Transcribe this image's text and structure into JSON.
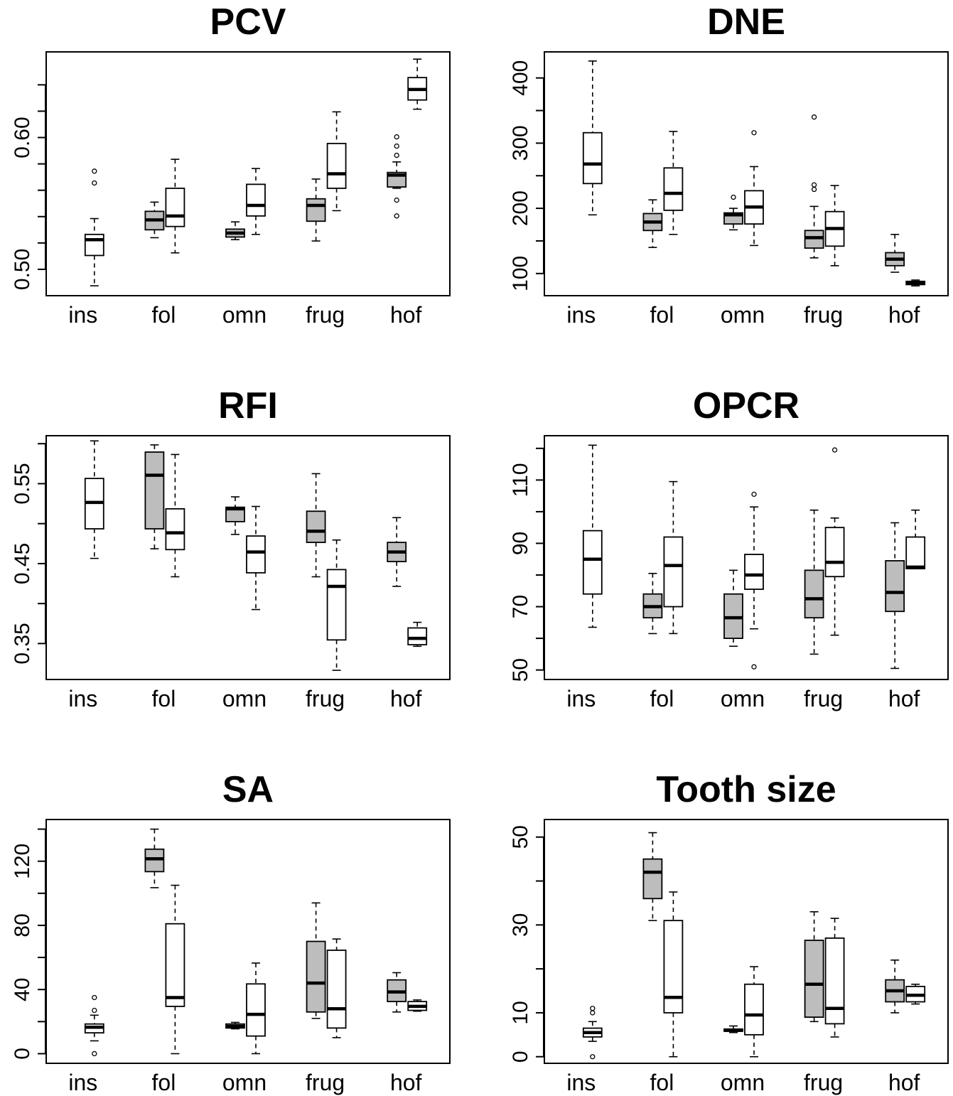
{
  "chart_data": [
    {
      "type": "box",
      "title": "PCV",
      "categories": [
        "ins",
        "fol",
        "omn",
        "frug",
        "hof"
      ],
      "ylim": [
        0.48,
        0.665
      ],
      "yticks": [
        0.5,
        0.52,
        0.54,
        0.56,
        0.58,
        0.6,
        0.62,
        0.64
      ],
      "ytick_labels": [
        "0.50",
        "",
        "",
        "",
        "",
        "0.60",
        "",
        ""
      ],
      "series": [
        {
          "fill": "#bdbdbd",
          "boxes": [
            null,
            {
              "min": 0.524,
              "q1": 0.53,
              "median": 0.5375,
              "q3": 0.544,
              "max": 0.551,
              "outliers": []
            },
            {
              "min": 0.5225,
              "q1": 0.5245,
              "median": 0.5275,
              "q3": 0.5305,
              "max": 0.536,
              "outliers": []
            },
            {
              "min": 0.5215,
              "q1": 0.5365,
              "median": 0.5485,
              "q3": 0.5535,
              "max": 0.5685,
              "outliers": []
            },
            {
              "min": 0.5615,
              "q1": 0.5625,
              "median": 0.5715,
              "q3": 0.5735,
              "max": 0.5815,
              "outliers": [
                0.5405,
                0.5525,
                0.5865,
                0.5935,
                0.6005
              ]
            }
          ]
        },
        {
          "fill": "#ffffff",
          "boxes": [
            {
              "min": 0.4875,
              "q1": 0.5105,
              "median": 0.5225,
              "q3": 0.5265,
              "max": 0.5385,
              "outliers": [
                0.5655,
                0.5745
              ]
            },
            {
              "min": 0.5125,
              "q1": 0.5325,
              "median": 0.5405,
              "q3": 0.5615,
              "max": 0.5835,
              "outliers": []
            },
            {
              "min": 0.5265,
              "q1": 0.5405,
              "median": 0.5485,
              "q3": 0.5645,
              "max": 0.5765,
              "outliers": []
            },
            {
              "min": 0.5445,
              "q1": 0.5615,
              "median": 0.5725,
              "q3": 0.5955,
              "max": 0.6195,
              "outliers": []
            },
            {
              "min": 0.6215,
              "q1": 0.6285,
              "median": 0.6365,
              "q3": 0.6455,
              "max": 0.6595,
              "outliers": []
            }
          ]
        }
      ]
    },
    {
      "type": "box",
      "title": "DNE",
      "categories": [
        "ins",
        "fol",
        "omn",
        "frug",
        "hof"
      ],
      "ylim": [
        66,
        440
      ],
      "yticks": [
        100,
        150,
        200,
        250,
        300,
        350,
        400
      ],
      "ytick_labels": [
        "100",
        "",
        "200",
        "",
        "300",
        "",
        "400"
      ],
      "series": [
        {
          "fill": "#bdbdbd",
          "boxes": [
            null,
            {
              "min": 140,
              "q1": 166,
              "median": 179,
              "q3": 192,
              "max": 213,
              "outliers": []
            },
            {
              "min": 167,
              "q1": 176,
              "median": 190,
              "q3": 193,
              "max": 200,
              "outliers": [
                217
              ]
            },
            {
              "min": 124,
              "q1": 139,
              "median": 155,
              "q3": 166,
              "max": 203,
              "outliers": [
                229,
                236,
                340
              ]
            },
            {
              "min": 102,
              "q1": 112,
              "median": 122,
              "q3": 132,
              "max": 160,
              "outliers": []
            }
          ]
        },
        {
          "fill": "#ffffff",
          "boxes": [
            {
              "min": 190,
              "q1": 238,
              "median": 268,
              "q3": 316,
              "max": 426,
              "outliers": []
            },
            {
              "min": 160,
              "q1": 197,
              "median": 223,
              "q3": 262,
              "max": 318,
              "outliers": []
            },
            {
              "min": 143,
              "q1": 176,
              "median": 202,
              "q3": 227,
              "max": 264,
              "outliers": [
                316
              ]
            },
            {
              "min": 112,
              "q1": 142,
              "median": 169,
              "q3": 195,
              "max": 235,
              "outliers": []
            },
            {
              "min": 81,
              "q1": 83,
              "median": 86,
              "q3": 88,
              "max": 90,
              "outliers": []
            }
          ]
        }
      ]
    },
    {
      "type": "box",
      "title": "RFI",
      "categories": [
        "ins",
        "fol",
        "omn",
        "frug",
        "hof"
      ],
      "ylim": [
        0.305,
        0.61
      ],
      "yticks": [
        0.35,
        0.4,
        0.45,
        0.5,
        0.55,
        0.6
      ],
      "ytick_labels": [
        "0.35",
        "",
        "0.45",
        "",
        "0.55",
        ""
      ],
      "series": [
        {
          "fill": "#bdbdbd",
          "boxes": [
            null,
            {
              "min": 0.4685,
              "q1": 0.4935,
              "median": 0.5605,
              "q3": 0.5895,
              "max": 0.5985,
              "outliers": []
            },
            {
              "min": 0.4865,
              "q1": 0.5025,
              "median": 0.5185,
              "q3": 0.5205,
              "max": 0.5335,
              "outliers": []
            },
            {
              "min": 0.4335,
              "q1": 0.4765,
              "median": 0.4905,
              "q3": 0.5155,
              "max": 0.5625,
              "outliers": []
            },
            {
              "min": 0.4215,
              "q1": 0.4525,
              "median": 0.4645,
              "q3": 0.4765,
              "max": 0.5075,
              "outliers": []
            }
          ]
        },
        {
          "fill": "#ffffff",
          "boxes": [
            {
              "min": 0.4565,
              "q1": 0.4935,
              "median": 0.5265,
              "q3": 0.5565,
              "max": 0.6035,
              "outliers": []
            },
            {
              "min": 0.4335,
              "q1": 0.4675,
              "median": 0.4885,
              "q3": 0.5185,
              "max": 0.5865,
              "outliers": []
            },
            {
              "min": 0.3925,
              "q1": 0.4385,
              "median": 0.4645,
              "q3": 0.4845,
              "max": 0.5215,
              "outliers": []
            },
            {
              "min": 0.3165,
              "q1": 0.3545,
              "median": 0.4215,
              "q3": 0.4425,
              "max": 0.4795,
              "outliers": []
            },
            {
              "min": 0.3465,
              "q1": 0.3485,
              "median": 0.3565,
              "q3": 0.3695,
              "max": 0.3765,
              "outliers": []
            }
          ]
        }
      ]
    },
    {
      "type": "box",
      "title": "OPCR",
      "categories": [
        "ins",
        "fol",
        "omn",
        "frug",
        "hof"
      ],
      "ylim": [
        47,
        124
      ],
      "yticks": [
        50,
        60,
        70,
        80,
        90,
        100,
        110,
        120
      ],
      "ytick_labels": [
        "50",
        "",
        "70",
        "",
        "90",
        "",
        "110",
        ""
      ],
      "series": [
        {
          "fill": "#bdbdbd",
          "boxes": [
            null,
            {
              "min": 61.5,
              "q1": 66.5,
              "median": 70,
              "q3": 74,
              "max": 80.5,
              "outliers": []
            },
            {
              "min": 57.5,
              "q1": 60,
              "median": 66.5,
              "q3": 74,
              "max": 81.5,
              "outliers": []
            },
            {
              "min": 55,
              "q1": 66.5,
              "median": 72.5,
              "q3": 81.5,
              "max": 100.5,
              "outliers": []
            },
            {
              "min": 50.5,
              "q1": 68.5,
              "median": 74.5,
              "q3": 84.5,
              "max": 96.5,
              "outliers": []
            }
          ]
        },
        {
          "fill": "#ffffff",
          "boxes": [
            {
              "min": 63.5,
              "q1": 74,
              "median": 85,
              "q3": 94,
              "max": 121,
              "outliers": []
            },
            {
              "min": 61.5,
              "q1": 70,
              "median": 83,
              "q3": 92,
              "max": 109.5,
              "outliers": []
            },
            {
              "min": 63,
              "q1": 75.5,
              "median": 80,
              "q3": 86.5,
              "max": 101.5,
              "outliers": [
                51,
                105.5
              ]
            },
            {
              "min": 61,
              "q1": 79.5,
              "median": 84,
              "q3": 95,
              "max": 98,
              "outliers": [
                119.5
              ]
            },
            {
              "min": 82,
              "q1": 82,
              "median": 82.5,
              "q3": 92,
              "max": 100.5,
              "outliers": []
            }
          ]
        }
      ]
    },
    {
      "type": "box",
      "title": "SA",
      "categories": [
        "ins",
        "fol",
        "omn",
        "frug",
        "hof"
      ],
      "ylim": [
        -6,
        146
      ],
      "yticks": [
        0,
        20,
        40,
        60,
        80,
        100,
        120,
        140
      ],
      "ytick_labels": [
        "0",
        "",
        "40",
        "",
        "80",
        "",
        "120",
        ""
      ],
      "series": [
        {
          "fill": "#bdbdbd",
          "boxes": [
            null,
            {
              "min": 103.5,
              "q1": 113.5,
              "median": 121.5,
              "q3": 127.5,
              "max": 140,
              "outliers": []
            },
            {
              "min": 15.5,
              "q1": 16,
              "median": 17,
              "q3": 18.5,
              "max": 19.5,
              "outliers": []
            },
            {
              "min": 22,
              "q1": 26,
              "median": 44,
              "q3": 70,
              "max": 94,
              "outliers": []
            },
            {
              "min": 26,
              "q1": 32.5,
              "median": 38.5,
              "q3": 46,
              "max": 50.5,
              "outliers": []
            }
          ]
        },
        {
          "fill": "#ffffff",
          "boxes": [
            {
              "min": 8,
              "q1": 13,
              "median": 16.5,
              "q3": 18.5,
              "max": 24,
              "outliers": [
                0,
                27,
                35
              ]
            },
            {
              "min": 0,
              "q1": 29.5,
              "median": 35,
              "q3": 81,
              "max": 105,
              "outliers": []
            },
            {
              "min": 0,
              "q1": 11,
              "median": 24.5,
              "q3": 43.5,
              "max": 56.5,
              "outliers": []
            },
            {
              "min": 10,
              "q1": 16,
              "median": 28,
              "q3": 64.5,
              "max": 71.5,
              "outliers": []
            },
            {
              "min": 26.5,
              "q1": 27,
              "median": 29.5,
              "q3": 32.5,
              "max": 33.5,
              "outliers": []
            }
          ]
        }
      ]
    },
    {
      "type": "box",
      "title": "Tooth size",
      "categories": [
        "ins",
        "fol",
        "omn",
        "frug",
        "hof"
      ],
      "ylim": [
        -1.5,
        54
      ],
      "yticks": [
        0,
        10,
        20,
        30,
        40,
        50
      ],
      "ytick_labels": [
        "0",
        "10",
        "",
        "30",
        "",
        "50"
      ],
      "series": [
        {
          "fill": "#bdbdbd",
          "boxes": [
            null,
            {
              "min": 31,
              "q1": 36,
              "median": 42,
              "q3": 45,
              "max": 51,
              "outliers": []
            },
            {
              "min": 5.5,
              "q1": 5.8,
              "median": 6,
              "q3": 6.3,
              "max": 7,
              "outliers": []
            },
            {
              "min": 8,
              "q1": 9,
              "median": 16.5,
              "q3": 26.5,
              "max": 33,
              "outliers": []
            },
            {
              "min": 10,
              "q1": 12.5,
              "median": 15,
              "q3": 17.5,
              "max": 22,
              "outliers": []
            }
          ]
        },
        {
          "fill": "#ffffff",
          "boxes": [
            {
              "min": 3.5,
              "q1": 4.5,
              "median": 5.5,
              "q3": 6.5,
              "max": 8,
              "outliers": [
                0,
                10,
                11
              ]
            },
            {
              "min": 0,
              "q1": 10,
              "median": 13.5,
              "q3": 31,
              "max": 37.5,
              "outliers": []
            },
            {
              "min": 0,
              "q1": 5,
              "median": 9.5,
              "q3": 16.5,
              "max": 20.5,
              "outliers": []
            },
            {
              "min": 4.5,
              "q1": 7.5,
              "median": 11,
              "q3": 27,
              "max": 31.5,
              "outliers": []
            },
            {
              "min": 12,
              "q1": 12.5,
              "median": 14,
              "q3": 16,
              "max": 16.5,
              "outliers": []
            }
          ]
        }
      ]
    }
  ]
}
